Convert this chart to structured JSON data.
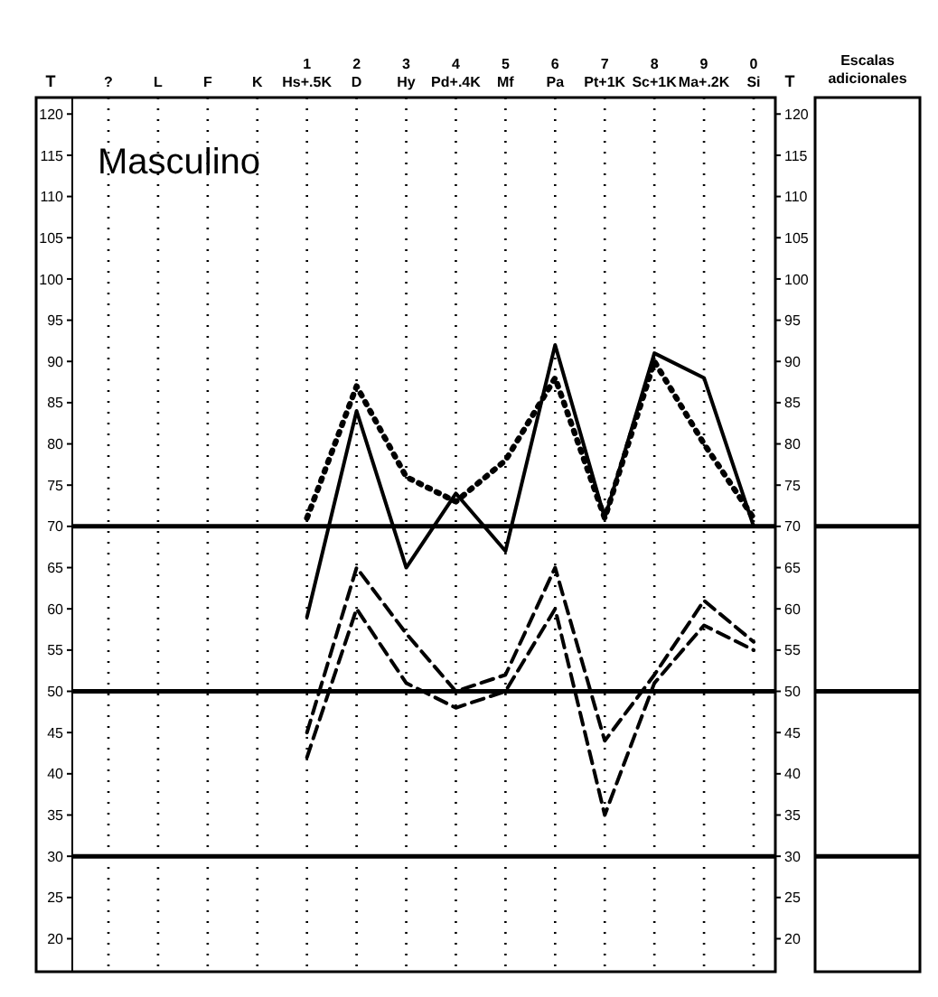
{
  "chart_data": {
    "type": "line",
    "title": "Masculino",
    "ylabel": "T",
    "y2label": "T",
    "categories": [
      "?",
      "L",
      "F",
      "K",
      "1\nHs+.5K",
      "2\nD",
      "3\nHy",
      "4\nPd+.4K",
      "5\nMf",
      "6\nPa",
      "7\nPt+1K",
      "8\nSc+1K",
      "9\nMa+.2K",
      "0\nSi"
    ],
    "series": [
      {
        "color": "#000000",
        "line_style": "solid",
        "values": [
          null,
          null,
          null,
          null,
          59,
          84,
          65,
          74,
          67,
          92,
          71,
          91,
          88,
          70
        ]
      },
      {
        "color": "#000000",
        "line_style": "dotted",
        "values": [
          null,
          null,
          null,
          null,
          71,
          87,
          76,
          73,
          78,
          88,
          71,
          90,
          80,
          71
        ]
      },
      {
        "color": "#000000",
        "line_style": "dashed",
        "values": [
          null,
          null,
          null,
          null,
          45,
          65,
          57,
          50,
          52,
          65,
          44,
          52,
          61,
          56
        ]
      },
      {
        "color": "#000000",
        "line_style": "dashed",
        "values": [
          null,
          null,
          null,
          null,
          42,
          60,
          51,
          48,
          50,
          60,
          35,
          51,
          58,
          55
        ]
      }
    ],
    "ylim": [
      16,
      122
    ],
    "yticks": [
      20,
      25,
      30,
      35,
      40,
      45,
      50,
      55,
      60,
      65,
      70,
      75,
      80,
      85,
      90,
      95,
      100,
      105,
      110,
      115,
      120
    ],
    "y2lim": [
      16,
      122
    ],
    "y2ticks": [
      20,
      25,
      30,
      35,
      40,
      45,
      50,
      55,
      60,
      65,
      70,
      75,
      80,
      85,
      90,
      95,
      100,
      105,
      110,
      115,
      120
    ],
    "ref_lines": [
      {
        "axis": "y",
        "value": 70
      },
      {
        "axis": "y",
        "value": 50
      },
      {
        "axis": "y",
        "value": 30
      }
    ],
    "grid": "x",
    "marker": "none",
    "annotations": [
      "Escalas adicionales"
    ]
  }
}
